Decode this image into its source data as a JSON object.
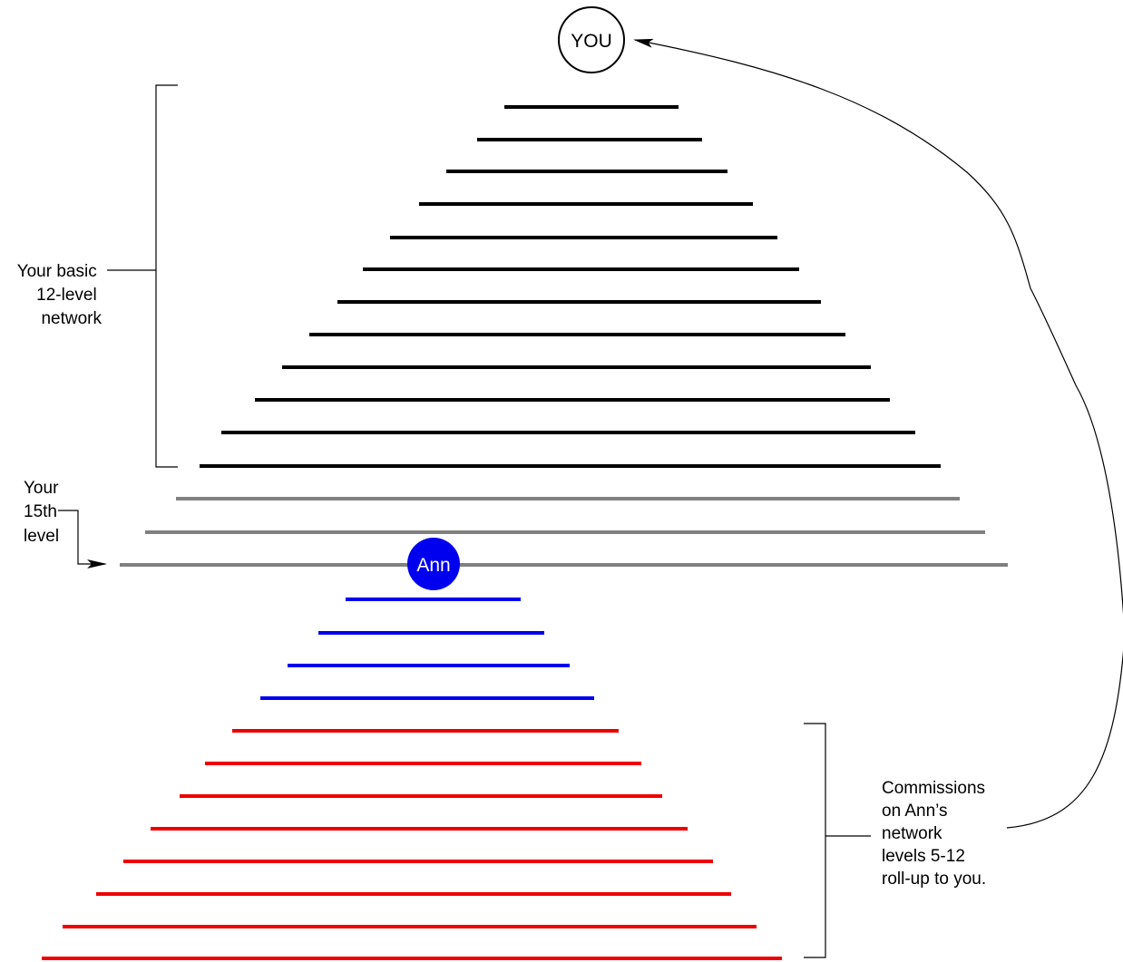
{
  "top_node": {
    "label": "YOU"
  },
  "ann_node": {
    "label": "Ann",
    "color": "#0000ee"
  },
  "colors": {
    "basic_levels": "#000000",
    "extra_levels": "#808080",
    "ann_levels": "#0000ee",
    "rollup_levels": "#ee0000"
  },
  "labels": {
    "basic_network": [
      "Your basic",
      "12-level",
      "network"
    ],
    "fifteenth_level": [
      "Your",
      "15th",
      "level"
    ],
    "commissions": [
      "Commissions",
      "on Ann’s",
      "network",
      "levels 5-12",
      "roll-up to you."
    ]
  },
  "levels": {
    "basic_count": 12,
    "extra_count": 3,
    "ann_blue_count": 4,
    "ann_red_count": 8
  }
}
